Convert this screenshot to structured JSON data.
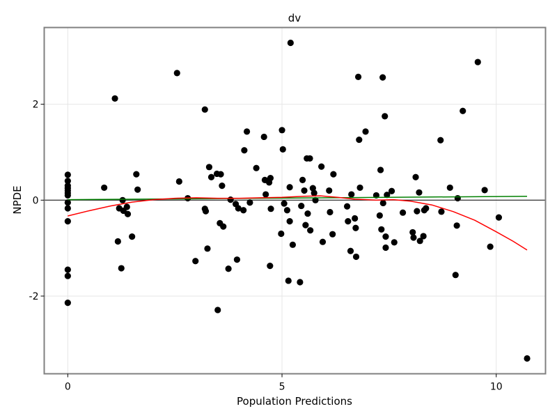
{
  "chart_data": {
    "type": "scatter",
    "title": "dv",
    "xlabel": "Population Predictions",
    "ylabel": "NPDE",
    "xlim": [
      -0.55,
      11.15
    ],
    "ylim": [
      -3.62,
      3.6
    ],
    "xticks": [
      0,
      5,
      10
    ],
    "xtick_labels": [
      "0",
      "5",
      "10"
    ],
    "yticks": [
      -2,
      0,
      2
    ],
    "ytick_labels": [
      "-2",
      "0",
      "2"
    ],
    "grid": true,
    "legend": null,
    "reference_line": {
      "y": 0,
      "color": "#000000"
    },
    "series": [
      {
        "name": "observations",
        "kind": "scatter",
        "color": "#000000",
        "points": [
          [
            0,
            0.53
          ],
          [
            0,
            0.4
          ],
          [
            0,
            0.3
          ],
          [
            0,
            0.25
          ],
          [
            0,
            0.2
          ],
          [
            0,
            0.15
          ],
          [
            0,
            0.1
          ],
          [
            0,
            -0.05
          ],
          [
            0,
            -0.17
          ],
          [
            0,
            -0.44
          ],
          [
            0,
            -1.45
          ],
          [
            0,
            -1.58
          ],
          [
            0,
            -2.14
          ],
          [
            0.85,
            0.26
          ],
          [
            1.1,
            2.12
          ],
          [
            1.17,
            -0.86
          ],
          [
            1.2,
            -0.17
          ],
          [
            1.25,
            -1.42
          ],
          [
            1.28,
            0.0
          ],
          [
            1.3,
            -0.22
          ],
          [
            1.38,
            -0.14
          ],
          [
            1.4,
            -0.29
          ],
          [
            1.5,
            -0.76
          ],
          [
            1.6,
            0.54
          ],
          [
            1.63,
            0.22
          ],
          [
            2.55,
            2.65
          ],
          [
            2.6,
            0.39
          ],
          [
            2.8,
            0.04
          ],
          [
            2.98,
            -1.27
          ],
          [
            3.2,
            1.89
          ],
          [
            3.2,
            -0.18
          ],
          [
            3.22,
            -0.23
          ],
          [
            3.26,
            -1.01
          ],
          [
            3.3,
            0.69
          ],
          [
            3.35,
            0.48
          ],
          [
            3.48,
            0.55
          ],
          [
            3.5,
            -2.29
          ],
          [
            3.55,
            -0.48
          ],
          [
            3.57,
            0.54
          ],
          [
            3.6,
            0.3
          ],
          [
            3.63,
            -0.55
          ],
          [
            3.75,
            -1.43
          ],
          [
            3.8,
            0.01
          ],
          [
            3.92,
            -0.08
          ],
          [
            3.95,
            -1.24
          ],
          [
            3.98,
            -0.17
          ],
          [
            4.1,
            -0.21
          ],
          [
            4.12,
            1.04
          ],
          [
            4.18,
            1.43
          ],
          [
            4.25,
            -0.05
          ],
          [
            4.4,
            0.67
          ],
          [
            4.58,
            1.32
          ],
          [
            4.6,
            0.42
          ],
          [
            4.62,
            0.12
          ],
          [
            4.7,
            0.37
          ],
          [
            4.72,
            -1.37
          ],
          [
            4.73,
            0.46
          ],
          [
            4.74,
            -0.18
          ],
          [
            4.98,
            -0.7
          ],
          [
            5.0,
            1.46
          ],
          [
            5.02,
            1.06
          ],
          [
            5.05,
            -0.07
          ],
          [
            5.12,
            -0.21
          ],
          [
            5.15,
            -1.68
          ],
          [
            5.18,
            0.27
          ],
          [
            5.18,
            -0.44
          ],
          [
            5.2,
            3.28
          ],
          [
            5.25,
            -0.93
          ],
          [
            5.42,
            -1.71
          ],
          [
            5.45,
            -0.12
          ],
          [
            5.48,
            0.42
          ],
          [
            5.52,
            0.2
          ],
          [
            5.55,
            -0.52
          ],
          [
            5.58,
            0.87
          ],
          [
            5.6,
            -0.28
          ],
          [
            5.65,
            0.87
          ],
          [
            5.66,
            -0.63
          ],
          [
            5.72,
            0.25
          ],
          [
            5.75,
            0.15
          ],
          [
            5.78,
            0.0
          ],
          [
            5.92,
            0.7
          ],
          [
            5.95,
            -0.87
          ],
          [
            6.1,
            0.2
          ],
          [
            6.12,
            -0.25
          ],
          [
            6.18,
            -0.71
          ],
          [
            6.2,
            0.54
          ],
          [
            6.52,
            -0.13
          ],
          [
            6.54,
            -0.44
          ],
          [
            6.6,
            -1.06
          ],
          [
            6.62,
            0.12
          ],
          [
            6.7,
            -0.38
          ],
          [
            6.72,
            -0.58
          ],
          [
            6.73,
            -1.18
          ],
          [
            6.78,
            2.57
          ],
          [
            6.8,
            1.26
          ],
          [
            6.82,
            0.26
          ],
          [
            6.95,
            1.43
          ],
          [
            7.2,
            0.1
          ],
          [
            7.28,
            -0.32
          ],
          [
            7.3,
            0.63
          ],
          [
            7.32,
            -0.61
          ],
          [
            7.35,
            2.56
          ],
          [
            7.36,
            -0.06
          ],
          [
            7.4,
            1.75
          ],
          [
            7.42,
            -0.76
          ],
          [
            7.42,
            -0.99
          ],
          [
            7.45,
            0.11
          ],
          [
            7.56,
            0.19
          ],
          [
            7.62,
            -0.88
          ],
          [
            7.82,
            -0.26
          ],
          [
            8.05,
            -0.67
          ],
          [
            8.07,
            -0.78
          ],
          [
            8.12,
            0.48
          ],
          [
            8.15,
            -0.23
          ],
          [
            8.2,
            0.16
          ],
          [
            8.22,
            -0.85
          ],
          [
            8.3,
            -0.75
          ],
          [
            8.32,
            -0.21
          ],
          [
            8.36,
            -0.17
          ],
          [
            8.7,
            1.25
          ],
          [
            8.72,
            -0.24
          ],
          [
            8.92,
            0.26
          ],
          [
            9.05,
            -1.56
          ],
          [
            9.08,
            -0.53
          ],
          [
            9.1,
            0.04
          ],
          [
            9.22,
            1.86
          ],
          [
            9.57,
            2.88
          ],
          [
            9.73,
            0.21
          ],
          [
            9.86,
            -0.97
          ],
          [
            10.06,
            -0.36
          ],
          [
            10.72,
            -3.3
          ]
        ]
      },
      {
        "name": "linear-fit",
        "kind": "line",
        "color": "#008000",
        "points": [
          [
            0,
            0.01
          ],
          [
            10.72,
            0.08
          ]
        ]
      },
      {
        "name": "loess-smooth",
        "kind": "line",
        "color": "#ff0000",
        "points": [
          [
            0,
            -0.33
          ],
          [
            0.5,
            -0.22
          ],
          [
            1,
            -0.12
          ],
          [
            1.5,
            -0.04
          ],
          [
            2,
            0.01
          ],
          [
            2.5,
            0.04
          ],
          [
            3,
            0.05
          ],
          [
            3.5,
            0.04
          ],
          [
            4,
            0.04
          ],
          [
            4.5,
            0.05
          ],
          [
            5,
            0.06
          ],
          [
            5.5,
            0.08
          ],
          [
            5.9,
            0.09
          ],
          [
            6.3,
            0.06
          ],
          [
            6.7,
            0.02
          ],
          [
            7.2,
            0.0
          ],
          [
            7.6,
            0.01
          ],
          [
            8.0,
            -0.02
          ],
          [
            8.5,
            -0.1
          ],
          [
            9.0,
            -0.24
          ],
          [
            9.5,
            -0.42
          ],
          [
            10.0,
            -0.66
          ],
          [
            10.4,
            -0.86
          ],
          [
            10.72,
            -1.04
          ]
        ]
      }
    ]
  }
}
